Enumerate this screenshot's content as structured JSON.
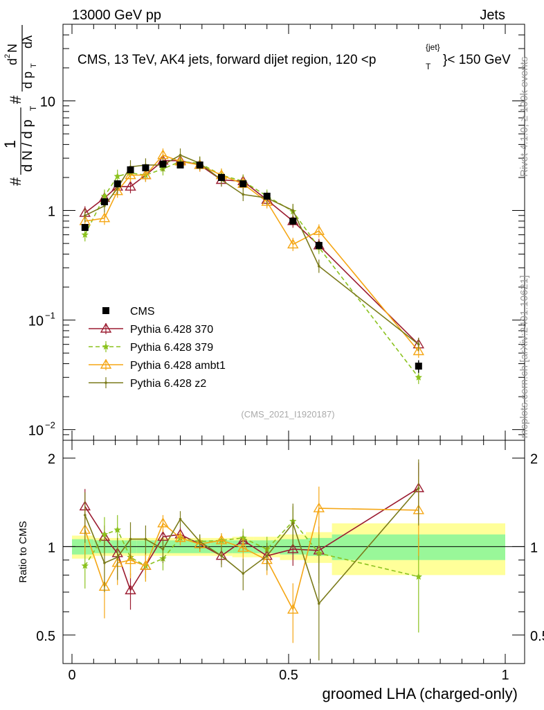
{
  "header": {
    "left": "13000 GeV pp",
    "right": "Jets"
  },
  "title": {
    "main": "CMS, 13 TeV, AK4 jets, forward dijet region, 120 <p",
    "sub": "T",
    "sup": "{jet}",
    "tail": "}< 150 GeV"
  },
  "ylabel_main": {
    "hash1": "#",
    "frac_num": "1",
    "frac_den": "d N / d p",
    "frac_den_sub": "T",
    "hash2": "#",
    "frac2_num": "d",
    "frac2_num_sup": "2",
    "frac2_num_tail": "N",
    "frac2_den": "d p",
    "frac2_den_sub": "T",
    "frac2_den_tail": " dλ"
  },
  "ylabel_ratio": "Ratio to CMS",
  "xlabel": "groomed LHA (charged-only)",
  "watermark": "(CMS_2021_I1920187)",
  "side_text_top": "Rivet 4.1.0, ≥ 100k events",
  "side_text_bottom": "mcplots.cern.ch [arXiv:2401.10621]",
  "main_yticks": [
    {
      "value": 0.01,
      "base": "10",
      "exp": "−2"
    },
    {
      "value": 0.1,
      "base": "10",
      "exp": "−1"
    },
    {
      "value": 1,
      "base": "1",
      "exp": ""
    },
    {
      "value": 10,
      "base": "10",
      "exp": ""
    }
  ],
  "ratio_yticks": [
    {
      "value": 0.5,
      "label": "0.5"
    },
    {
      "value": 1,
      "label": "1"
    },
    {
      "value": 2,
      "label": "2"
    }
  ],
  "xticks": [
    {
      "value": 0,
      "label": "0"
    },
    {
      "value": 0.5,
      "label": "0.5"
    },
    {
      "value": 1,
      "label": "1"
    }
  ],
  "legend": [
    {
      "key": "cms",
      "label": "CMS"
    },
    {
      "key": "p370",
      "label": "Pythia 6.428 370"
    },
    {
      "key": "p379",
      "label": "Pythia 6.428 379"
    },
    {
      "key": "ambt1",
      "label": "Pythia 6.428 ambt1"
    },
    {
      "key": "z2",
      "label": "Pythia 6.428 z2"
    }
  ],
  "colors": {
    "cms": "#000000",
    "p370": "#9b1b30",
    "p379": "#8bc21e",
    "ambt1": "#f5a614",
    "z2": "#7a7a1a",
    "band_inner": "#99f799",
    "band_outer": "#ffff99"
  },
  "chart_data": {
    "type": "line",
    "title": "CMS, 13 TeV, AK4 jets, forward dijet region, 120 < pT{jet} < 150 GeV",
    "xlabel": "groomed LHA (charged-only)",
    "ylabel": "1/dN/dpT d2N/dpT dλ",
    "xlim": [
      0,
      1
    ],
    "ylim_main": [
      0.008,
      50
    ],
    "yscale_main": "log",
    "ylim_ratio": [
      0.4,
      2.3
    ],
    "yscale_ratio": "log",
    "x": [
      0.03,
      0.075,
      0.105,
      0.135,
      0.17,
      0.21,
      0.25,
      0.295,
      0.345,
      0.395,
      0.45,
      0.51,
      0.57,
      0.8
    ],
    "bin_edges": [
      0,
      0.05,
      0.09,
      0.12,
      0.15,
      0.19,
      0.23,
      0.27,
      0.32,
      0.37,
      0.42,
      0.48,
      0.54,
      0.6,
      1.0
    ],
    "cms": {
      "name": "CMS",
      "values": [
        0.7,
        1.2,
        1.75,
        2.35,
        2.45,
        2.65,
        2.6,
        2.6,
        2.0,
        1.75,
        1.35,
        0.8,
        0.48,
        0.038
      ],
      "err": [
        0.04,
        0.07,
        0.08,
        0.1,
        0.1,
        0.12,
        0.12,
        0.12,
        0.1,
        0.09,
        0.08,
        0.06,
        0.04,
        0.005
      ]
    },
    "band_inner": [
      0.06,
      0.05,
      0.05,
      0.05,
      0.05,
      0.05,
      0.05,
      0.05,
      0.05,
      0.05,
      0.05,
      0.06,
      0.07,
      0.1
    ],
    "band_outer": [
      0.09,
      0.07,
      0.07,
      0.07,
      0.07,
      0.07,
      0.07,
      0.07,
      0.07,
      0.08,
      0.08,
      0.1,
      0.12,
      0.2
    ],
    "series": [
      {
        "key": "p370",
        "name": "Pythia 6.428 370",
        "marker": "triangle-open",
        "dash": "",
        "values": [
          0.95,
          1.3,
          1.65,
          1.65,
          2.1,
          2.85,
          2.85,
          2.6,
          1.9,
          1.85,
          1.25,
          0.8,
          0.48,
          0.06
        ],
        "ratio": [
          1.37,
          1.08,
          0.95,
          0.71,
          0.86,
          1.08,
          1.1,
          1.02,
          0.93,
          1.05,
          0.93,
          0.98,
          0.97,
          1.58
        ],
        "ratio_err": [
          0.2,
          0.1,
          0.1,
          0.1,
          0.08,
          0.06,
          0.06,
          0.06,
          0.06,
          0.08,
          0.08,
          0.12,
          0.2,
          0.35
        ]
      },
      {
        "key": "p379",
        "name": "Pythia 6.428 379",
        "marker": "star",
        "dash": "6,4",
        "values": [
          0.6,
          1.35,
          2.05,
          2.2,
          2.1,
          2.4,
          2.8,
          2.7,
          2.1,
          1.85,
          1.35,
          0.98,
          0.46,
          0.03
        ],
        "ratio": [
          0.86,
          1.1,
          1.14,
          0.92,
          0.86,
          0.91,
          1.07,
          1.04,
          1.05,
          1.07,
          0.98,
          1.22,
          0.95,
          0.79
        ],
        "ratio_err": [
          0.14,
          0.16,
          0.14,
          0.12,
          0.1,
          0.08,
          0.06,
          0.06,
          0.06,
          0.08,
          0.1,
          0.15,
          0.2,
          0.28
        ]
      },
      {
        "key": "ambt1",
        "name": "Pythia 6.428 ambt1",
        "marker": "triangle-open",
        "dash": "",
        "values": [
          0.8,
          0.85,
          1.5,
          2.1,
          2.1,
          3.2,
          2.8,
          2.6,
          2.1,
          1.75,
          1.2,
          0.49,
          0.65,
          0.052
        ],
        "ratio": [
          1.14,
          0.73,
          0.88,
          0.9,
          0.86,
          1.2,
          1.07,
          1.02,
          1.05,
          0.99,
          0.9,
          0.61,
          1.35,
          1.33
        ],
        "ratio_err": [
          0.2,
          0.16,
          0.14,
          0.12,
          0.1,
          0.08,
          0.06,
          0.06,
          0.06,
          0.08,
          0.1,
          0.14,
          0.25,
          0.4
        ]
      },
      {
        "key": "z2",
        "name": "Pythia 6.428 z2",
        "marker": "dot",
        "dash": "",
        "values": [
          0.9,
          1.1,
          1.6,
          2.5,
          2.6,
          2.6,
          3.2,
          2.7,
          1.9,
          1.4,
          1.3,
          1.0,
          0.31,
          0.06
        ],
        "ratio": [
          1.28,
          0.88,
          0.92,
          1.06,
          1.06,
          0.98,
          1.24,
          1.04,
          0.93,
          0.81,
          0.93,
          1.2,
          0.64,
          1.58
        ],
        "ratio_err": [
          0.25,
          0.18,
          0.15,
          0.15,
          0.12,
          0.1,
          0.08,
          0.06,
          0.08,
          0.1,
          0.1,
          0.2,
          0.3,
          0.4
        ]
      }
    ]
  }
}
